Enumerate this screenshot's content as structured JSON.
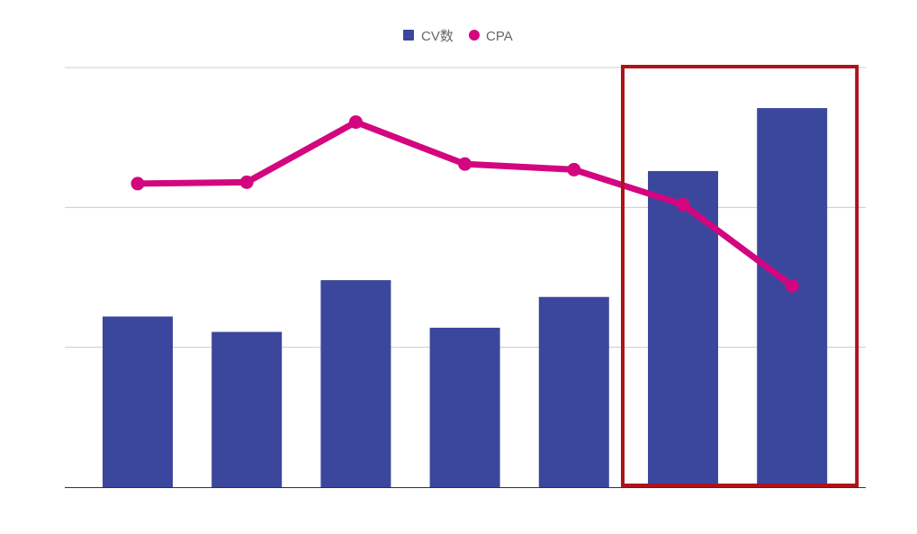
{
  "colors": {
    "bar": "#3B479D",
    "line": "#D3067F",
    "gridline": "#cccccc",
    "axis": "#333333",
    "highlight_box": "#B0121A"
  },
  "legend": {
    "position": "top-center",
    "items": [
      {
        "label": "CV数",
        "marker": "square",
        "color": "#3B479D"
      },
      {
        "label": "CPA",
        "marker": "circle",
        "color": "#D3067F"
      }
    ]
  },
  "chart_data": {
    "type": "bar",
    "categories": [
      "",
      "",
      "",
      "",
      "",
      "",
      ""
    ],
    "series": [
      {
        "name": "CV数",
        "type": "bar",
        "axis": "left",
        "values": [
          12.2,
          11.1,
          14.8,
          11.4,
          13.6,
          22.6,
          27.1
        ]
      },
      {
        "name": "CPA",
        "type": "line",
        "axis": "right",
        "values": [
          21.7,
          21.8,
          26.1,
          23.1,
          22.7,
          20.2,
          14.4
        ]
      }
    ],
    "ylim_left": [
      0,
      30
    ],
    "ylim_right": [
      0,
      30
    ],
    "grid": true,
    "axis_labels_visible": false,
    "highlight": {
      "categories_index": [
        5,
        6
      ],
      "shape": "rectangle"
    }
  }
}
